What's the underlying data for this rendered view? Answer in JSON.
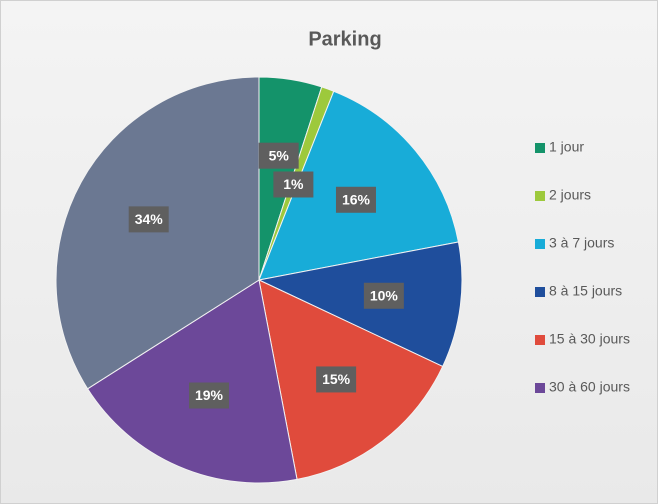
{
  "chart_data": {
    "type": "pie",
    "title": "Parking",
    "categories": [
      "1 jour",
      "2 jours ",
      "3 à 7 jours",
      "8 à 15 jours",
      "15 à 30 jours",
      "30 à 60 jours",
      null
    ],
    "values": [
      5,
      1,
      16,
      10,
      15,
      19,
      34
    ],
    "value_labels": [
      "5%",
      "1%",
      "16%",
      "10%",
      "15%",
      "19%",
      "34%"
    ],
    "colors": [
      "#14936a",
      "#9dc93c",
      "#18acd8",
      "#1f4e9c",
      "#e04b3c",
      "#6c4899",
      "#6b7892"
    ],
    "legend": "right"
  }
}
